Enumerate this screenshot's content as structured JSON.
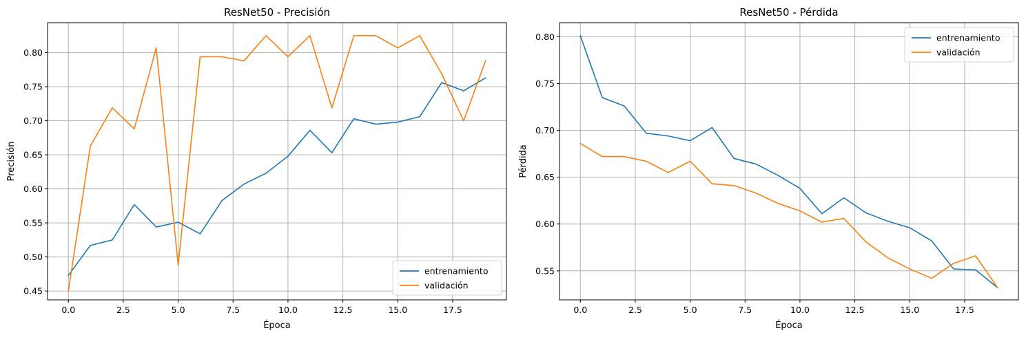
{
  "chart_data": [
    {
      "type": "line",
      "title": "ResNet50 - Precisión",
      "xlabel": "Época",
      "ylabel": "Precisión",
      "xlim": [
        -0.95,
        19.95
      ],
      "ylim": [
        0.437,
        0.844
      ],
      "xticks": [
        0.0,
        2.5,
        5.0,
        7.5,
        10.0,
        12.5,
        15.0,
        17.5
      ],
      "xtick_labels": [
        "0.0",
        "2.5",
        "5.0",
        "7.5",
        "10.0",
        "12.5",
        "15.0",
        "17.5"
      ],
      "yticks": [
        0.45,
        0.5,
        0.55,
        0.6,
        0.65,
        0.7,
        0.75,
        0.8
      ],
      "ytick_labels": [
        "0.45",
        "0.50",
        "0.55",
        "0.60",
        "0.65",
        "0.70",
        "0.75",
        "0.80"
      ],
      "grid": true,
      "legend": "lower right",
      "x": [
        0,
        1,
        2,
        3,
        4,
        5,
        6,
        7,
        8,
        9,
        10,
        11,
        12,
        13,
        14,
        15,
        16,
        17,
        18,
        19
      ],
      "series": [
        {
          "name": "entrenamiento",
          "color": "#1f77b4",
          "values": [
            0.473,
            0.517,
            0.525,
            0.577,
            0.544,
            0.551,
            0.534,
            0.583,
            0.607,
            0.623,
            0.648,
            0.686,
            0.653,
            0.703,
            0.695,
            0.698,
            0.706,
            0.756,
            0.744,
            0.763
          ]
        },
        {
          "name": "validación",
          "color": "#ff7f0e",
          "values": [
            0.45,
            0.663,
            0.719,
            0.688,
            0.807,
            0.488,
            0.794,
            0.794,
            0.788,
            0.825,
            0.794,
            0.825,
            0.719,
            0.825,
            0.825,
            0.807,
            0.825,
            0.769,
            0.7,
            0.788
          ]
        }
      ]
    },
    {
      "type": "line",
      "title": "ResNet50 - Pérdida",
      "xlabel": "Época",
      "ylabel": "Pérdida",
      "xlim": [
        -0.95,
        19.95
      ],
      "ylim": [
        0.519,
        0.815
      ],
      "xticks": [
        0.0,
        2.5,
        5.0,
        7.5,
        10.0,
        12.5,
        15.0,
        17.5
      ],
      "xtick_labels": [
        "0.0",
        "2.5",
        "5.0",
        "7.5",
        "10.0",
        "12.5",
        "15.0",
        "17.5"
      ],
      "yticks": [
        0.55,
        0.6,
        0.65,
        0.7,
        0.75,
        0.8
      ],
      "ytick_labels": [
        "0.55",
        "0.60",
        "0.65",
        "0.70",
        "0.75",
        "0.80"
      ],
      "grid": true,
      "legend": "upper right",
      "x": [
        0,
        1,
        2,
        3,
        4,
        5,
        6,
        7,
        8,
        9,
        10,
        11,
        12,
        13,
        14,
        15,
        16,
        17,
        18,
        19
      ],
      "series": [
        {
          "name": "entrenamiento",
          "color": "#1f77b4",
          "values": [
            0.801,
            0.735,
            0.726,
            0.697,
            0.694,
            0.689,
            0.703,
            0.67,
            0.664,
            0.652,
            0.638,
            0.611,
            0.628,
            0.612,
            0.603,
            0.596,
            0.582,
            0.552,
            0.551,
            0.532
          ]
        },
        {
          "name": "validación",
          "color": "#ff7f0e",
          "values": [
            0.686,
            0.672,
            0.672,
            0.667,
            0.655,
            0.667,
            0.643,
            0.641,
            0.633,
            0.622,
            0.614,
            0.602,
            0.606,
            0.581,
            0.564,
            0.552,
            0.542,
            0.558,
            0.566,
            0.532
          ]
        }
      ]
    }
  ]
}
